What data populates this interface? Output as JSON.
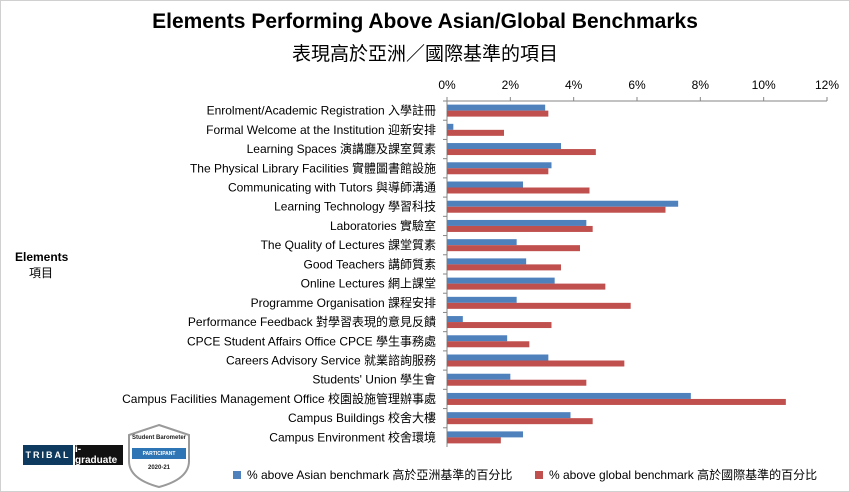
{
  "chart_data": {
    "type": "bar",
    "orientation": "horizontal",
    "title": "Elements Performing Above Asian/Global Benchmarks",
    "subtitle": "表現高於亞洲／國際基準的項目",
    "ylabel": "Elements",
    "ylabel_zh": "項目",
    "xlim": [
      0,
      12
    ],
    "x_ticks": [
      "0%",
      "2%",
      "4%",
      "6%",
      "8%",
      "10%",
      "12%"
    ],
    "x_axis_position": "top",
    "grid": false,
    "legend_position": "bottom",
    "categories": [
      "Enrolment/Academic Registration 入學註冊",
      "Formal Welcome at the Institution 迎新安排",
      "Learning Spaces 演講廳及課室質素",
      "The Physical Library Facilities 實體圖書館設施",
      "Communicating with Tutors 與導師溝通",
      "Learning Technology 學習科技",
      "Laboratories 實驗室",
      "The Quality of Lectures 課堂質素",
      "Good Teachers 講師質素",
      "Online Lectures 網上課堂",
      "Programme Organisation 課程安排",
      "Performance Feedback 對學習表現的意見反饋",
      "CPCE Student Affairs Office CPCE 學生事務處",
      "Careers Advisory Service 就業諮詢服務",
      "Students' Union 學生會",
      "Campus Facilities Management Office 校園設施管理辦事處",
      "Campus Buildings 校舍大樓",
      "Campus Environment 校舍環境"
    ],
    "series": [
      {
        "name": "% above Asian benchmark 高於亞洲基準的百分比",
        "color": "#4f81bd",
        "values": [
          3.1,
          0.2,
          3.6,
          3.3,
          2.4,
          7.3,
          4.4,
          2.2,
          2.5,
          3.4,
          2.2,
          0.5,
          1.9,
          3.2,
          2.0,
          7.7,
          3.9,
          2.4
        ]
      },
      {
        "name": "% above global benchmark 高於國際基準的百分比",
        "color": "#c0504d",
        "values": [
          3.2,
          1.8,
          4.7,
          3.2,
          4.5,
          6.9,
          4.6,
          4.2,
          3.6,
          5.0,
          5.8,
          3.3,
          2.6,
          5.6,
          4.4,
          10.7,
          4.6,
          1.7
        ]
      }
    ]
  },
  "branding": {
    "tribal": "TRIBAL",
    "igraduate": "i-graduate",
    "badge_title": "Student Barometer",
    "badge_role": "PARTICIPANT",
    "badge_year": "2020-21",
    "colors": {
      "tribal_bg": "#0d3a5e",
      "badge_gray": "#9a9a9a",
      "badge_blue": "#2e75b6"
    }
  }
}
